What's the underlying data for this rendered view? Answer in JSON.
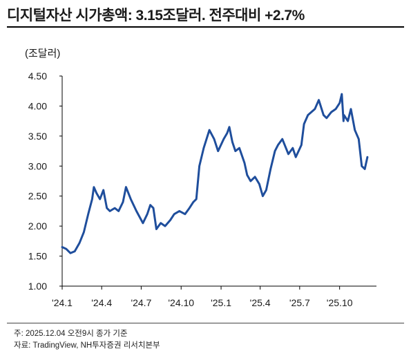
{
  "title": "디지털자산 시가총액: 3.15조달러. 전주대비 +2.7%",
  "notes": {
    "note": "주: 2025.12.04 오전9시 종가 기준",
    "source": "자료: TradingView, NH투자증권 리서치본부"
  },
  "colors": {
    "line": "#1f4e9c",
    "axis": "#000000",
    "text": "#1a1a1a"
  },
  "chart_data": {
    "type": "line",
    "title": "디지털자산 시가총액: 3.15조달러. 전주대비 +2.7%",
    "unit_label": "(조달러)",
    "ylim": [
      1.0,
      4.5
    ],
    "yticks": [
      "1.00",
      "1.50",
      "2.00",
      "2.50",
      "3.00",
      "3.50",
      "4.00",
      "4.50"
    ],
    "xticks": [
      {
        "label": "'24.1",
        "x": "2024-01-01"
      },
      {
        "label": "'24.4",
        "x": "2024-04-01"
      },
      {
        "label": "'24.7",
        "x": "2024-07-01"
      },
      {
        "label": "'24.10",
        "x": "2024-10-01"
      },
      {
        "label": "'25.1",
        "x": "2025-01-01"
      },
      {
        "label": "'25.4",
        "x": "2025-04-01"
      },
      {
        "label": "'25.7",
        "x": "2025-07-01"
      },
      {
        "label": "'25.10",
        "x": "2025-10-01"
      }
    ],
    "grid": false,
    "series": [
      {
        "x": [
          "2024-01-01",
          "2024-01-10",
          "2024-01-20",
          "2024-01-30",
          "2024-02-10",
          "2024-02-20",
          "2024-03-01",
          "2024-03-10",
          "2024-03-14",
          "2024-03-20",
          "2024-03-28",
          "2024-04-05",
          "2024-04-13",
          "2024-04-20",
          "2024-05-01",
          "2024-05-10",
          "2024-05-20",
          "2024-05-27",
          "2024-06-07",
          "2024-06-20",
          "2024-07-05",
          "2024-07-15",
          "2024-07-22",
          "2024-07-29",
          "2024-08-05",
          "2024-08-15",
          "2024-08-25",
          "2024-09-06",
          "2024-09-15",
          "2024-09-27",
          "2024-10-10",
          "2024-10-20",
          "2024-10-29",
          "2024-11-05",
          "2024-11-12",
          "2024-11-22",
          "2024-12-05",
          "2024-12-16",
          "2024-12-25",
          "2025-01-07",
          "2025-01-15",
          "2025-01-20",
          "2025-01-27",
          "2025-02-03",
          "2025-02-12",
          "2025-02-24",
          "2025-03-02",
          "2025-03-10",
          "2025-03-20",
          "2025-03-30",
          "2025-04-07",
          "2025-04-15",
          "2025-04-25",
          "2025-05-05",
          "2025-05-12",
          "2025-05-22",
          "2025-06-05",
          "2025-06-15",
          "2025-06-22",
          "2025-07-05",
          "2025-07-11",
          "2025-07-20",
          "2025-07-28",
          "2025-08-05",
          "2025-08-14",
          "2025-08-25",
          "2025-09-01",
          "2025-09-12",
          "2025-09-22",
          "2025-10-01",
          "2025-10-06",
          "2025-10-10",
          "2025-10-11",
          "2025-10-20",
          "2025-10-27",
          "2025-11-05",
          "2025-11-14",
          "2025-11-21",
          "2025-11-28",
          "2025-12-04"
        ],
        "values": [
          1.65,
          1.62,
          1.55,
          1.58,
          1.72,
          1.9,
          2.2,
          2.45,
          2.65,
          2.55,
          2.45,
          2.6,
          2.3,
          2.25,
          2.3,
          2.25,
          2.4,
          2.65,
          2.45,
          2.25,
          2.05,
          2.2,
          2.35,
          2.3,
          1.95,
          2.05,
          2.0,
          2.1,
          2.2,
          2.25,
          2.2,
          2.3,
          2.4,
          2.45,
          3.0,
          3.3,
          3.6,
          3.45,
          3.25,
          3.45,
          3.55,
          3.65,
          3.4,
          3.25,
          3.3,
          3.05,
          2.85,
          2.75,
          2.82,
          2.7,
          2.5,
          2.6,
          2.95,
          3.25,
          3.35,
          3.45,
          3.2,
          3.3,
          3.15,
          3.35,
          3.7,
          3.85,
          3.9,
          3.95,
          4.1,
          3.85,
          3.8,
          3.9,
          3.95,
          4.05,
          4.2,
          3.75,
          3.85,
          3.75,
          3.95,
          3.6,
          3.45,
          3.0,
          2.95,
          3.15
        ]
      }
    ]
  }
}
